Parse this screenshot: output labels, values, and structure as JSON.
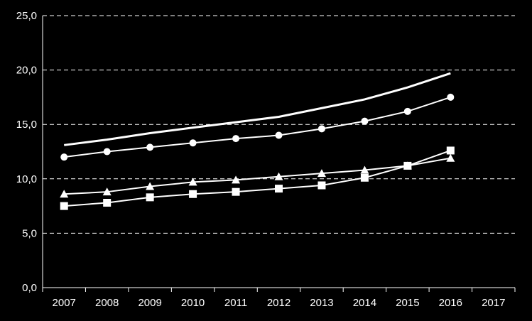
{
  "chart_data": {
    "type": "line",
    "categories": [
      "2007",
      "2008",
      "2009",
      "2010",
      "2011",
      "2012",
      "2013",
      "2014",
      "2015",
      "2016",
      "2017"
    ],
    "y_ticks": [
      "0,0",
      "5,0",
      "10,0",
      "15,0",
      "20,0",
      "25,0"
    ],
    "ylim": [
      0,
      25
    ],
    "grid": "dashed horizontal",
    "legend": "none",
    "series": [
      {
        "marker": "none",
        "values": [
          13.1,
          13.6,
          14.2,
          14.7,
          15.2,
          15.7,
          16.5,
          17.3,
          18.4,
          19.7,
          null
        ]
      },
      {
        "marker": "circle",
        "values": [
          12.0,
          12.5,
          12.9,
          13.3,
          13.7,
          14.0,
          14.6,
          15.3,
          16.2,
          17.5,
          null
        ]
      },
      {
        "marker": "triangle",
        "values": [
          8.6,
          8.8,
          9.3,
          9.7,
          9.9,
          10.2,
          10.5,
          10.8,
          11.2,
          11.9,
          null
        ]
      },
      {
        "marker": "square",
        "values": [
          7.5,
          7.8,
          8.3,
          8.6,
          8.8,
          9.1,
          9.4,
          10.1,
          11.2,
          12.6,
          null
        ]
      }
    ],
    "colors": {
      "background": "#000000",
      "foreground": "#ffffff"
    }
  }
}
